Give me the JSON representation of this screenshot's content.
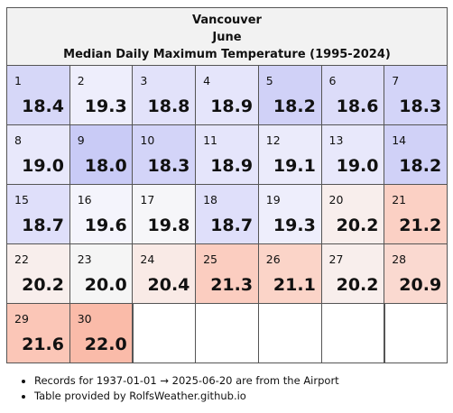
{
  "header": {
    "title": [
      "Vancouver",
      "June",
      "Median Daily Maximum Temperature (1995-2024)"
    ]
  },
  "table": {
    "cells": [
      {
        "day": 1,
        "value": "18.4",
        "color": "#d6d7f8"
      },
      {
        "day": 2,
        "value": "19.3",
        "color": "#eeeefc"
      },
      {
        "day": 3,
        "value": "18.8",
        "color": "#e2e2fa"
      },
      {
        "day": 4,
        "value": "18.9",
        "color": "#e5e5fb"
      },
      {
        "day": 5,
        "value": "18.2",
        "color": "#d0d1f7"
      },
      {
        "day": 6,
        "value": "18.6",
        "color": "#dcdcf9"
      },
      {
        "day": 7,
        "value": "18.3",
        "color": "#d3d4f8"
      },
      {
        "day": 8,
        "value": "19.0",
        "color": "#e8e8fb"
      },
      {
        "day": 9,
        "value": "18.0",
        "color": "#c9cbf6"
      },
      {
        "day": 10,
        "value": "18.3",
        "color": "#d3d4f8"
      },
      {
        "day": 11,
        "value": "18.9",
        "color": "#e5e5fb"
      },
      {
        "day": 12,
        "value": "19.1",
        "color": "#ebebfb"
      },
      {
        "day": 13,
        "value": "19.0",
        "color": "#e8e8fb"
      },
      {
        "day": 14,
        "value": "18.2",
        "color": "#d0d1f7"
      },
      {
        "day": 15,
        "value": "18.7",
        "color": "#dfdffa"
      },
      {
        "day": 16,
        "value": "19.6",
        "color": "#f4f4fc"
      },
      {
        "day": 17,
        "value": "19.8",
        "color": "#f6f6f9"
      },
      {
        "day": 18,
        "value": "18.7",
        "color": "#dfdffa"
      },
      {
        "day": 19,
        "value": "19.3",
        "color": "#eeeefc"
      },
      {
        "day": 20,
        "value": "20.2",
        "color": "#f8eeec"
      },
      {
        "day": 21,
        "value": "21.2",
        "color": "#fbd0c4"
      },
      {
        "day": 22,
        "value": "20.2",
        "color": "#f8eeec"
      },
      {
        "day": 23,
        "value": "20.0",
        "color": "#f5f5f5"
      },
      {
        "day": 24,
        "value": "20.4",
        "color": "#f9eae6"
      },
      {
        "day": 25,
        "value": "21.3",
        "color": "#fbcdc0"
      },
      {
        "day": 26,
        "value": "21.1",
        "color": "#fbd4c8"
      },
      {
        "day": 27,
        "value": "20.2",
        "color": "#f8eeec"
      },
      {
        "day": 28,
        "value": "20.9",
        "color": "#fad9d0"
      },
      {
        "day": 29,
        "value": "21.6",
        "color": "#fbc6b7"
      },
      {
        "day": 30,
        "value": "22.0",
        "color": "#fabba9"
      }
    ]
  },
  "notes": [
    "Records for 1937-01-01 → 2025-06-20 are from the Airport",
    "Table provided by RolfsWeather.github.io"
  ]
}
